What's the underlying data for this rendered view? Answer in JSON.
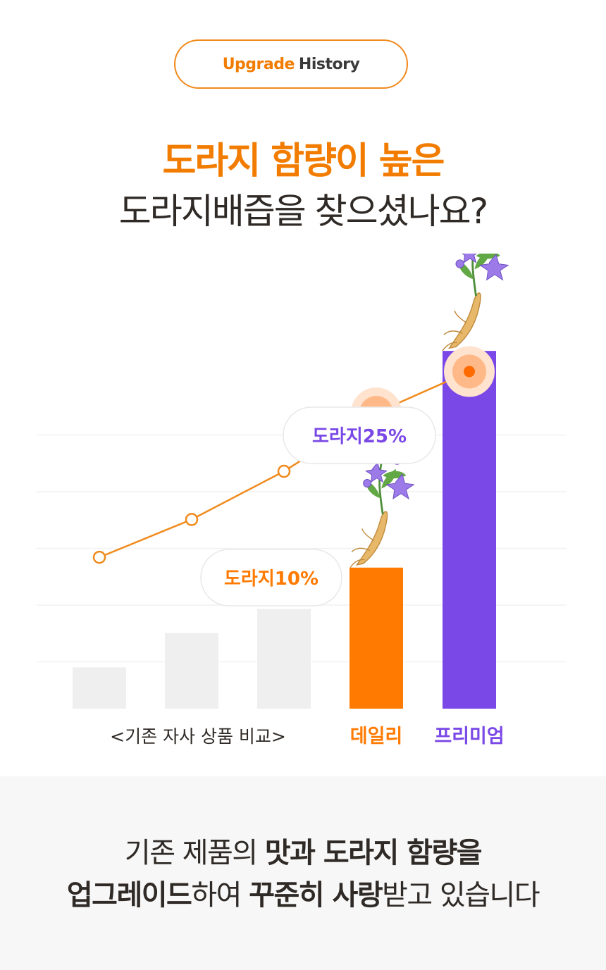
{
  "badge": {
    "highlight": "Upgrade",
    "text": "History"
  },
  "headline": {
    "line1": "도라지 함량이 높은",
    "line2": "도라지배즙을 찾으셨나요?"
  },
  "chart_data": {
    "type": "bar",
    "categories": [
      "",
      "",
      "",
      "데일리",
      "프리미엄"
    ],
    "group_label": "<기존 자사 상품 비교>",
    "values": [
      1.2,
      2.2,
      2.9,
      4.1,
      10.4
    ],
    "trend_line": [
      4.4,
      5.5,
      6.9,
      8.6,
      9.8
    ],
    "highlight_points": [
      3,
      4
    ],
    "callouts": [
      {
        "index": 3,
        "text": "도라지10%"
      },
      {
        "index": 4,
        "text": "도라지25%"
      }
    ],
    "colors": [
      "#efefef",
      "#efefef",
      "#efefef",
      "#ff7a00",
      "#7a48e6"
    ],
    "line_color": "#f08a1c",
    "ylim": [
      0,
      12
    ],
    "grid": true
  },
  "colors": {
    "accent": "#f27c00",
    "purple": "#7a48e6",
    "text": "#2f2a26"
  },
  "footer": {
    "line1": {
      "a": "기존 제품의 ",
      "b": "맛과 도라지 함량을"
    },
    "line2": {
      "a": "업그레이드",
      "b": "하여 ",
      "c": "꾸준히 사랑",
      "d": "받고 있습니다"
    }
  }
}
